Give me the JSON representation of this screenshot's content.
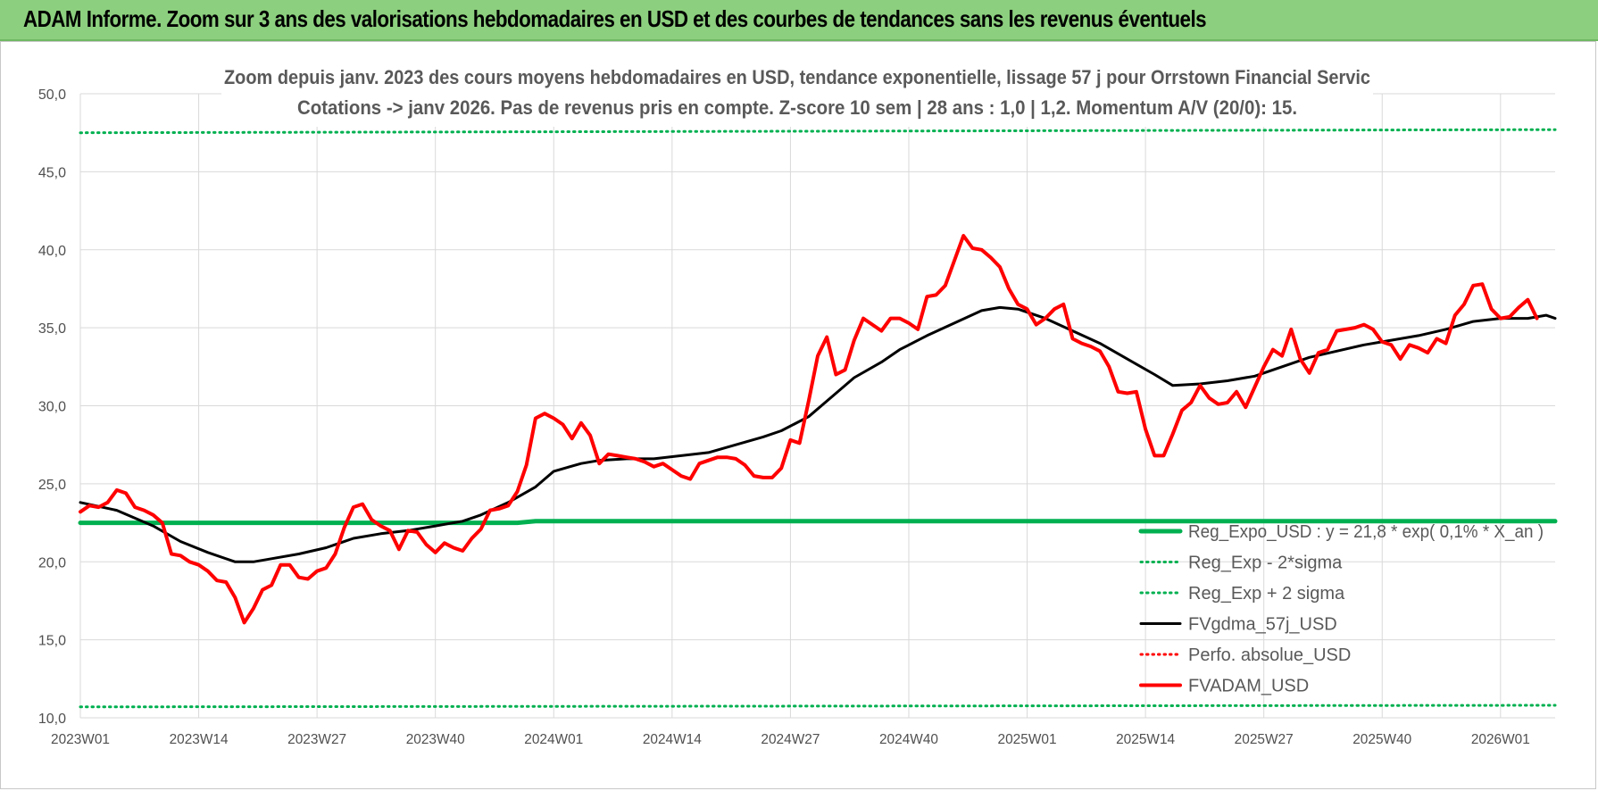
{
  "header": {
    "title": "ADAM Informe. Zoom sur 3 ans des valorisations hebdomadaires en USD et des courbes de tendances sans les revenus éventuels"
  },
  "chart_data": {
    "type": "line",
    "title_line1": "Zoom depuis janv. 2023 des cours moyens hebdomadaires en USD, tendance exponentielle, lissage 57 j pour Orrstown Financial Servic",
    "title_line2": "Cotations -> janv 2026. Pas de revenus pris en compte. Z-score 10 sem | 28 ans : 1,0 | 1,2. Momentum A/V (20/0): 15.",
    "ylim": [
      10,
      50
    ],
    "yticks": [
      "10,0",
      "15,0",
      "20,0",
      "25,0",
      "30,0",
      "35,0",
      "40,0",
      "45,0",
      "50,0"
    ],
    "xlim": [
      0,
      162
    ],
    "xticks": [
      {
        "i": 0,
        "label": "2023W01"
      },
      {
        "i": 13,
        "label": "2023W14"
      },
      {
        "i": 26,
        "label": "2023W27"
      },
      {
        "i": 39,
        "label": "2023W40"
      },
      {
        "i": 52,
        "label": "2024W01"
      },
      {
        "i": 65,
        "label": "2024W14"
      },
      {
        "i": 78,
        "label": "2024W27"
      },
      {
        "i": 91,
        "label": "2024W40"
      },
      {
        "i": 104,
        "label": "2025W01"
      },
      {
        "i": 117,
        "label": "2025W14"
      },
      {
        "i": 130,
        "label": "2025W27"
      },
      {
        "i": 143,
        "label": "2025W40"
      },
      {
        "i": 156,
        "label": "2026W01"
      }
    ],
    "grid": true,
    "legend_position": "bottom-right",
    "series": [
      {
        "name": "Reg_Expo_USD : y = 21,8 * exp( 0,1% * X_an )",
        "color": "#00b050",
        "style": "solid-thick",
        "points": [
          [
            0,
            22.5
          ],
          [
            48,
            22.5
          ],
          [
            50,
            22.6
          ],
          [
            162,
            22.6
          ]
        ]
      },
      {
        "name": "Reg_Exp - 2*sigma",
        "color": "#00b050",
        "style": "dotted",
        "points": [
          [
            0,
            10.7
          ],
          [
            162,
            10.8
          ]
        ]
      },
      {
        "name": "Reg_Exp + 2 sigma",
        "color": "#00b050",
        "style": "dotted",
        "points": [
          [
            0,
            47.5
          ],
          [
            162,
            47.7
          ]
        ]
      },
      {
        "name": "FVgdma_57j_USD",
        "color": "#000000",
        "style": "solid",
        "points": [
          [
            0,
            23.8
          ],
          [
            4,
            23.3
          ],
          [
            8,
            22.3
          ],
          [
            11,
            21.3
          ],
          [
            14,
            20.6
          ],
          [
            17,
            20.0
          ],
          [
            19,
            20.0
          ],
          [
            21,
            20.2
          ],
          [
            24,
            20.5
          ],
          [
            27,
            20.9
          ],
          [
            30,
            21.5
          ],
          [
            33,
            21.8
          ],
          [
            36,
            22.0
          ],
          [
            39,
            22.3
          ],
          [
            42,
            22.6
          ],
          [
            44,
            23.0
          ],
          [
            47,
            23.8
          ],
          [
            50,
            24.8
          ],
          [
            52,
            25.8
          ],
          [
            55,
            26.3
          ],
          [
            57,
            26.5
          ],
          [
            60,
            26.6
          ],
          [
            63,
            26.6
          ],
          [
            66,
            26.8
          ],
          [
            69,
            27.0
          ],
          [
            72,
            27.5
          ],
          [
            75,
            28.0
          ],
          [
            77,
            28.4
          ],
          [
            80,
            29.3
          ],
          [
            83,
            30.8
          ],
          [
            85,
            31.8
          ],
          [
            88,
            32.8
          ],
          [
            90,
            33.6
          ],
          [
            93,
            34.5
          ],
          [
            96,
            35.3
          ],
          [
            99,
            36.1
          ],
          [
            101,
            36.3
          ],
          [
            103,
            36.2
          ],
          [
            106,
            35.6
          ],
          [
            109,
            34.8
          ],
          [
            112,
            34.0
          ],
          [
            115,
            33.0
          ],
          [
            118,
            32.0
          ],
          [
            120,
            31.3
          ],
          [
            123,
            31.4
          ],
          [
            126,
            31.6
          ],
          [
            129,
            31.9
          ],
          [
            132,
            32.5
          ],
          [
            135,
            33.1
          ],
          [
            138,
            33.5
          ],
          [
            141,
            33.9
          ],
          [
            144,
            34.2
          ],
          [
            147,
            34.5
          ],
          [
            150,
            34.9
          ],
          [
            153,
            35.4
          ],
          [
            156,
            35.6
          ],
          [
            159,
            35.6
          ],
          [
            161,
            35.8
          ],
          [
            162,
            35.6
          ]
        ]
      },
      {
        "name": "Perfo. absolue_USD",
        "color": "#ff0000",
        "style": "dotted",
        "points": []
      },
      {
        "name": "FVADAM_USD",
        "color": "#ff0000",
        "style": "solid-thick",
        "points": [
          [
            0,
            23.2
          ],
          [
            1,
            23.6
          ],
          [
            2,
            23.5
          ],
          [
            3,
            23.8
          ],
          [
            4,
            24.6
          ],
          [
            5,
            24.4
          ],
          [
            6,
            23.5
          ],
          [
            7,
            23.3
          ],
          [
            8,
            23.0
          ],
          [
            9,
            22.5
          ],
          [
            10,
            20.5
          ],
          [
            11,
            20.4
          ],
          [
            12,
            20.0
          ],
          [
            13,
            19.8
          ],
          [
            14,
            19.4
          ],
          [
            15,
            18.8
          ],
          [
            16,
            18.7
          ],
          [
            17,
            17.7
          ],
          [
            18,
            16.1
          ],
          [
            19,
            17.0
          ],
          [
            20,
            18.2
          ],
          [
            21,
            18.5
          ],
          [
            22,
            19.8
          ],
          [
            23,
            19.8
          ],
          [
            24,
            19.0
          ],
          [
            25,
            18.9
          ],
          [
            26,
            19.4
          ],
          [
            27,
            19.6
          ],
          [
            28,
            20.5
          ],
          [
            29,
            22.2
          ],
          [
            30,
            23.5
          ],
          [
            31,
            23.7
          ],
          [
            32,
            22.7
          ],
          [
            33,
            22.3
          ],
          [
            34,
            22.0
          ],
          [
            35,
            20.8
          ],
          [
            36,
            22.0
          ],
          [
            37,
            21.9
          ],
          [
            38,
            21.1
          ],
          [
            39,
            20.6
          ],
          [
            40,
            21.2
          ],
          [
            41,
            20.9
          ],
          [
            42,
            20.7
          ],
          [
            43,
            21.5
          ],
          [
            44,
            22.1
          ],
          [
            45,
            23.3
          ],
          [
            46,
            23.4
          ],
          [
            47,
            23.6
          ],
          [
            48,
            24.5
          ],
          [
            49,
            26.2
          ],
          [
            50,
            29.2
          ],
          [
            51,
            29.5
          ],
          [
            52,
            29.2
          ],
          [
            53,
            28.8
          ],
          [
            54,
            27.9
          ],
          [
            55,
            28.9
          ],
          [
            56,
            28.1
          ],
          [
            57,
            26.3
          ],
          [
            58,
            26.9
          ],
          [
            59,
            26.8
          ],
          [
            60,
            26.7
          ],
          [
            61,
            26.6
          ],
          [
            62,
            26.4
          ],
          [
            63,
            26.1
          ],
          [
            64,
            26.3
          ],
          [
            65,
            25.9
          ],
          [
            66,
            25.5
          ],
          [
            67,
            25.3
          ],
          [
            68,
            26.3
          ],
          [
            69,
            26.5
          ],
          [
            70,
            26.7
          ],
          [
            71,
            26.7
          ],
          [
            72,
            26.6
          ],
          [
            73,
            26.2
          ],
          [
            74,
            25.5
          ],
          [
            75,
            25.4
          ],
          [
            76,
            25.4
          ],
          [
            77,
            26.0
          ],
          [
            78,
            27.8
          ],
          [
            79,
            27.6
          ],
          [
            80,
            30.3
          ],
          [
            81,
            33.2
          ],
          [
            82,
            34.4
          ],
          [
            83,
            32.0
          ],
          [
            84,
            32.3
          ],
          [
            85,
            34.2
          ],
          [
            86,
            35.6
          ],
          [
            87,
            35.2
          ],
          [
            88,
            34.8
          ],
          [
            89,
            35.6
          ],
          [
            90,
            35.6
          ],
          [
            91,
            35.3
          ],
          [
            92,
            34.9
          ],
          [
            93,
            37.0
          ],
          [
            94,
            37.1
          ],
          [
            95,
            37.7
          ],
          [
            96,
            39.3
          ],
          [
            97,
            40.9
          ],
          [
            98,
            40.1
          ],
          [
            99,
            40.0
          ],
          [
            100,
            39.5
          ],
          [
            101,
            38.9
          ],
          [
            102,
            37.5
          ],
          [
            103,
            36.5
          ],
          [
            104,
            36.2
          ],
          [
            105,
            35.2
          ],
          [
            106,
            35.6
          ],
          [
            107,
            36.2
          ],
          [
            108,
            36.5
          ],
          [
            109,
            34.3
          ],
          [
            110,
            34.0
          ],
          [
            111,
            33.8
          ],
          [
            112,
            33.5
          ],
          [
            113,
            32.5
          ],
          [
            114,
            30.9
          ],
          [
            115,
            30.8
          ],
          [
            116,
            30.9
          ],
          [
            117,
            28.5
          ],
          [
            118,
            26.8
          ],
          [
            119,
            26.8
          ],
          [
            120,
            28.2
          ],
          [
            121,
            29.7
          ],
          [
            122,
            30.2
          ],
          [
            123,
            31.3
          ],
          [
            124,
            30.5
          ],
          [
            125,
            30.1
          ],
          [
            126,
            30.2
          ],
          [
            127,
            30.9
          ],
          [
            128,
            29.9
          ],
          [
            129,
            31.2
          ],
          [
            130,
            32.5
          ],
          [
            131,
            33.6
          ],
          [
            132,
            33.2
          ],
          [
            133,
            34.9
          ],
          [
            134,
            33.0
          ],
          [
            135,
            32.1
          ],
          [
            136,
            33.4
          ],
          [
            137,
            33.6
          ],
          [
            138,
            34.8
          ],
          [
            139,
            34.9
          ],
          [
            140,
            35.0
          ],
          [
            141,
            35.2
          ],
          [
            142,
            34.9
          ],
          [
            143,
            34.1
          ],
          [
            144,
            33.9
          ],
          [
            145,
            33.0
          ],
          [
            146,
            33.9
          ],
          [
            147,
            33.7
          ],
          [
            148,
            33.4
          ],
          [
            149,
            34.3
          ],
          [
            150,
            34.0
          ],
          [
            151,
            35.8
          ],
          [
            152,
            36.5
          ],
          [
            153,
            37.7
          ],
          [
            154,
            37.8
          ],
          [
            155,
            36.2
          ],
          [
            156,
            35.6
          ],
          [
            157,
            35.7
          ],
          [
            158,
            36.3
          ],
          [
            159,
            36.8
          ],
          [
            160,
            35.6
          ]
        ]
      }
    ]
  }
}
